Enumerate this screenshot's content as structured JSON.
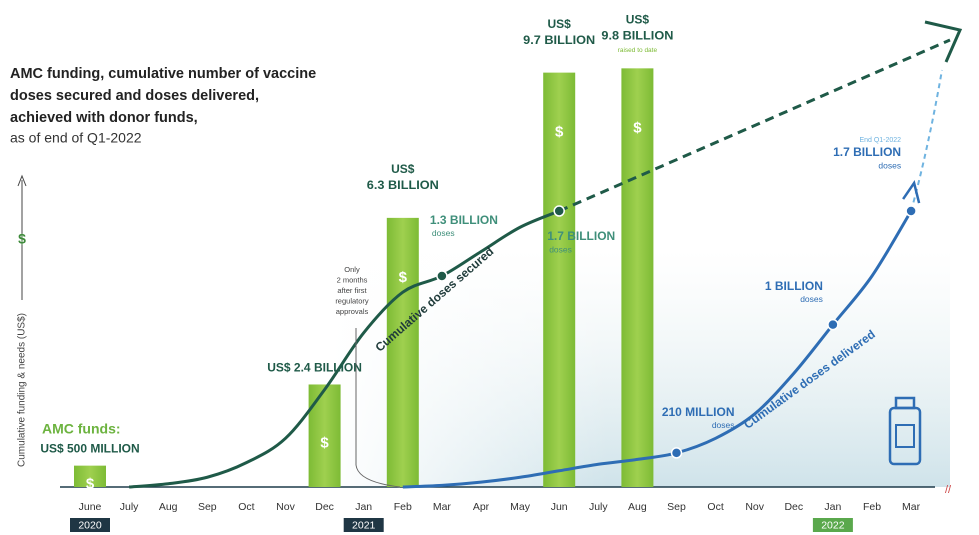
{
  "chart_data": {
    "type": "bar",
    "title_lines": [
      "AMC funding, cumulative number of vaccine",
      "doses secured and doses delivered,",
      "achieved with donor funds,"
    ],
    "subtitle": "as of end of Q1-2022",
    "y_axis_label": "Cumulative funding & needs (US$)",
    "symbol": "$",
    "categories": [
      "June",
      "July",
      "Aug",
      "Sep",
      "Oct",
      "Nov",
      "Dec",
      "Jan",
      "Feb",
      "Mar",
      "Apr",
      "May",
      "Jun",
      "July",
      "Aug",
      "Sep",
      "Oct",
      "Nov",
      "Dec",
      "Jan",
      "Feb",
      "Mar"
    ],
    "years": [
      "2020",
      null,
      null,
      null,
      null,
      null,
      null,
      "2021",
      null,
      null,
      null,
      null,
      null,
      null,
      null,
      null,
      null,
      null,
      null,
      "2022",
      null,
      null
    ],
    "ylim": [
      0,
      11.4
    ],
    "y2lim": [
      0,
      3
    ],
    "funding": {
      "color": "#8cc63f",
      "currency_label": "US$",
      "first_label": "AMC funds:",
      "last_note": "raised to date",
      "values": [
        0.5,
        null,
        null,
        null,
        null,
        null,
        2.4,
        null,
        6.3,
        null,
        null,
        null,
        9.7,
        null,
        9.8,
        null,
        null,
        null,
        null,
        null,
        null,
        null
      ],
      "value_labels": [
        "500 MILLION",
        null,
        null,
        null,
        null,
        null,
        "2.4 BILLION",
        null,
        "6.3 BILLION",
        null,
        null,
        null,
        "9.7 BILLION",
        null,
        "9.8 BILLION",
        null,
        null,
        null,
        null,
        null,
        null,
        null
      ]
    },
    "unit_label": "doses",
    "end_note": "End Q1-2022",
    "approval_note": [
      "Only",
      "2 months",
      "after first",
      "regulatory",
      "approvals"
    ],
    "series": [
      {
        "name": "Cumulative doses secured",
        "color": "#1f5a48",
        "axis": "y2",
        "values": [
          null,
          0,
          0.02,
          0.06,
          0.15,
          0.3,
          0.6,
          0.95,
          1.2,
          1.3,
          1.45,
          1.6,
          1.7,
          null,
          null,
          null,
          null,
          null,
          null,
          null,
          null,
          null
        ],
        "value_labels": [
          null,
          null,
          null,
          null,
          null,
          null,
          null,
          null,
          null,
          "1.3 BILLION",
          null,
          null,
          "1.7 BILLION",
          null,
          null,
          null,
          null,
          null,
          null,
          null,
          null,
          null
        ]
      },
      {
        "name": "Cumulative doses delivered",
        "color": "#2e6db4",
        "axis": "y2",
        "values": [
          null,
          null,
          null,
          null,
          null,
          null,
          null,
          null,
          0,
          0.01,
          0.03,
          0.06,
          0.1,
          0.14,
          0.17,
          0.21,
          0.3,
          0.45,
          0.7,
          1.0,
          1.3,
          1.7
        ],
        "value_labels": [
          null,
          null,
          null,
          null,
          null,
          null,
          null,
          null,
          null,
          null,
          null,
          null,
          null,
          null,
          null,
          "210 MILLION",
          null,
          null,
          null,
          "1 BILLION",
          null,
          "1.7 BILLION"
        ]
      }
    ]
  }
}
